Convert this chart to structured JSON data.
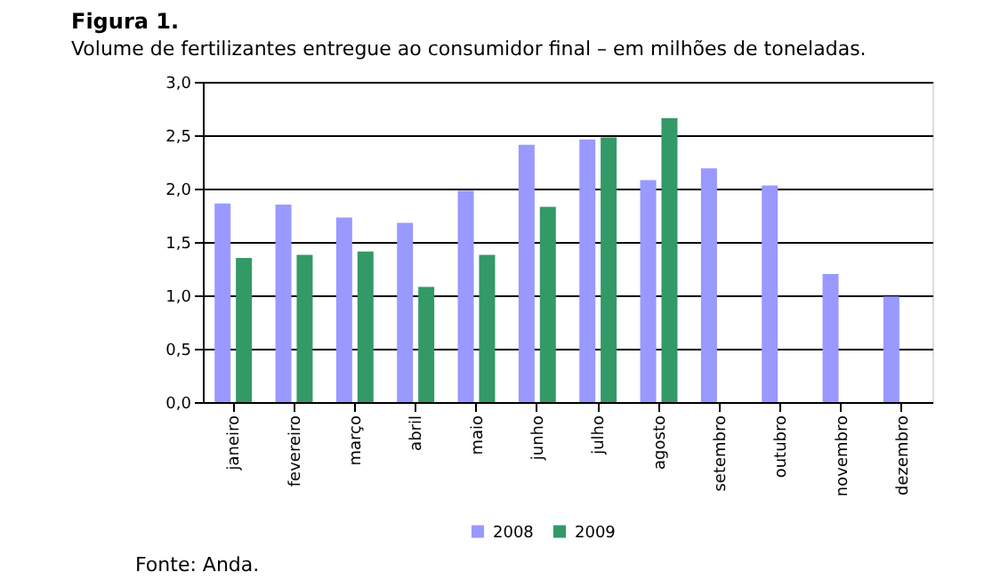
{
  "chart_data": {
    "type": "bar",
    "title": "Figura 1.",
    "subtitle": "Volume de fertilizantes entregue ao consumidor final – em milhões de toneladas.",
    "categories": [
      "janeiro",
      "fevereiro",
      "março",
      "abril",
      "maio",
      "junho",
      "julho",
      "agosto",
      "setembro",
      "outubro",
      "novembro",
      "dezembro"
    ],
    "series": [
      {
        "name": "2008",
        "color": "#9999ff",
        "values": [
          1.86,
          1.85,
          1.73,
          1.68,
          1.98,
          2.41,
          2.46,
          2.08,
          2.19,
          2.03,
          1.2,
          0.99
        ]
      },
      {
        "name": "2009",
        "color": "#339966",
        "values": [
          1.35,
          1.38,
          1.41,
          1.08,
          1.38,
          1.83,
          2.48,
          2.66,
          null,
          null,
          null,
          null
        ]
      }
    ],
    "ylim": [
      0,
      3
    ],
    "yticks": [
      {
        "value": 0,
        "label": "0,0"
      },
      {
        "value": 0.5,
        "label": "0,5"
      },
      {
        "value": 1,
        "label": "1,0"
      },
      {
        "value": 1.5,
        "label": "1,5"
      },
      {
        "value": 2,
        "label": "2,0"
      },
      {
        "value": 2.5,
        "label": "2,5"
      },
      {
        "value": 3,
        "label": "3,0"
      }
    ],
    "grid": "y",
    "legend": "bottom",
    "annotations": [
      "Fonte: Anda."
    ]
  }
}
